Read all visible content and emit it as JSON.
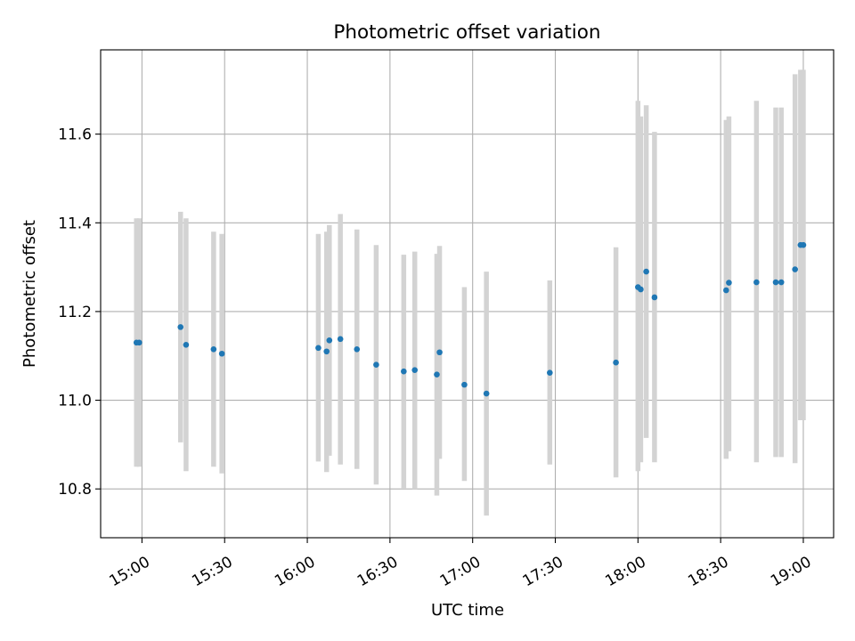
{
  "chart_data": {
    "type": "scatter",
    "title": "Photometric offset variation",
    "xlabel": "UTC time",
    "ylabel": "Photometric offset",
    "x_ticks": [
      "15:00",
      "15:30",
      "16:00",
      "16:30",
      "17:00",
      "17:30",
      "18:00",
      "18:30",
      "19:00"
    ],
    "y_ticks": [
      "10.8",
      "11.0",
      "11.2",
      "11.4",
      "11.6"
    ],
    "xlim": [
      "14:45",
      "19:11"
    ],
    "ylim": [
      10.69,
      11.79
    ],
    "grid": true,
    "colors": {
      "point": "#1f77b4",
      "errorbar": "#d3d3d3",
      "grid": "#b0b0b0"
    },
    "series": [
      {
        "points": [
          {
            "x": "14:58",
            "y": 11.13,
            "ylow": 10.85,
            "yhigh": 11.41
          },
          {
            "x": "14:59",
            "y": 11.13,
            "ylow": 10.85,
            "yhigh": 11.41
          },
          {
            "x": "15:14",
            "y": 11.165,
            "ylow": 10.905,
            "yhigh": 11.425
          },
          {
            "x": "15:16",
            "y": 11.125,
            "ylow": 10.84,
            "yhigh": 11.41
          },
          {
            "x": "15:26",
            "y": 11.115,
            "ylow": 10.85,
            "yhigh": 11.38
          },
          {
            "x": "15:29",
            "y": 11.105,
            "ylow": 10.835,
            "yhigh": 11.375
          },
          {
            "x": "16:04",
            "y": 11.118,
            "ylow": 10.862,
            "yhigh": 11.375
          },
          {
            "x": "16:07",
            "y": 11.11,
            "ylow": 10.838,
            "yhigh": 11.38
          },
          {
            "x": "16:08",
            "y": 11.135,
            "ylow": 10.875,
            "yhigh": 11.395
          },
          {
            "x": "16:12",
            "y": 11.138,
            "ylow": 10.855,
            "yhigh": 11.42
          },
          {
            "x": "16:18",
            "y": 11.115,
            "ylow": 10.845,
            "yhigh": 11.385
          },
          {
            "x": "16:25",
            "y": 11.08,
            "ylow": 10.81,
            "yhigh": 11.35
          },
          {
            "x": "16:35",
            "y": 11.065,
            "ylow": 10.802,
            "yhigh": 11.328
          },
          {
            "x": "16:39",
            "y": 11.068,
            "ylow": 10.8,
            "yhigh": 11.335
          },
          {
            "x": "16:47",
            "y": 11.058,
            "ylow": 10.785,
            "yhigh": 11.33
          },
          {
            "x": "16:48",
            "y": 11.108,
            "ylow": 10.868,
            "yhigh": 11.348
          },
          {
            "x": "16:57",
            "y": 11.035,
            "ylow": 10.818,
            "yhigh": 11.255
          },
          {
            "x": "17:05",
            "y": 11.015,
            "ylow": 10.74,
            "yhigh": 11.29
          },
          {
            "x": "17:28",
            "y": 11.062,
            "ylow": 10.855,
            "yhigh": 11.27
          },
          {
            "x": "17:52",
            "y": 11.085,
            "ylow": 10.826,
            "yhigh": 11.345
          },
          {
            "x": "18:00",
            "y": 11.255,
            "ylow": 10.84,
            "yhigh": 11.675
          },
          {
            "x": "18:01",
            "y": 11.25,
            "ylow": 10.86,
            "yhigh": 11.64
          },
          {
            "x": "18:03",
            "y": 11.29,
            "ylow": 10.915,
            "yhigh": 11.665
          },
          {
            "x": "18:06",
            "y": 11.232,
            "ylow": 10.86,
            "yhigh": 11.605
          },
          {
            "x": "18:32",
            "y": 11.248,
            "ylow": 10.868,
            "yhigh": 11.632
          },
          {
            "x": "18:33",
            "y": 11.265,
            "ylow": 10.885,
            "yhigh": 11.64
          },
          {
            "x": "18:43",
            "y": 11.266,
            "ylow": 10.86,
            "yhigh": 11.675
          },
          {
            "x": "18:50",
            "y": 11.266,
            "ylow": 10.872,
            "yhigh": 11.66
          },
          {
            "x": "18:52",
            "y": 11.266,
            "ylow": 10.872,
            "yhigh": 11.66
          },
          {
            "x": "18:57",
            "y": 11.295,
            "ylow": 10.858,
            "yhigh": 11.735
          },
          {
            "x": "18:59",
            "y": 11.35,
            "ylow": 10.955,
            "yhigh": 11.745
          },
          {
            "x": "19:00",
            "y": 11.35,
            "ylow": 10.955,
            "yhigh": 11.745
          }
        ]
      }
    ]
  }
}
